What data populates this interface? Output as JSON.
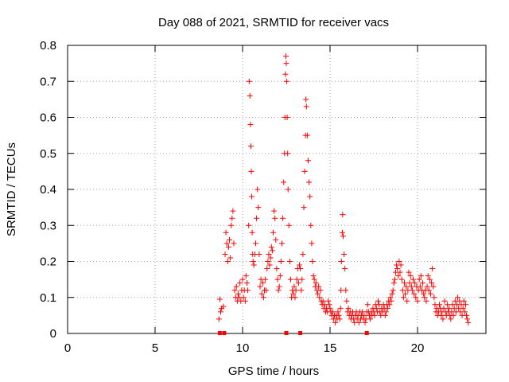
{
  "chart_data": {
    "type": "scatter",
    "title": "Day 088 of 2021, SRMTID for receiver vacs",
    "xlabel": "GPS time / hours",
    "ylabel": "SRMTID / TECUs",
    "xlim": [
      0,
      23.91
    ],
    "ylim": [
      0,
      0.8
    ],
    "x_ticks": [
      0,
      5,
      10,
      15,
      20
    ],
    "y_ticks": [
      0,
      0.1,
      0.2,
      0.3,
      0.4,
      0.5,
      0.6,
      0.7,
      0.8
    ],
    "x_tick_labels": [
      "0",
      "5",
      "10",
      "15",
      "20"
    ],
    "y_tick_labels": [
      "0",
      "0.1",
      "0.2",
      "0.3",
      "0.4",
      "0.5",
      "0.6",
      "0.7",
      "0.8"
    ],
    "grid": true,
    "marker": "+",
    "color": "#ff0000",
    "series": [
      {
        "name": "SRMTID",
        "points": [
          [
            8.65,
            0.04
          ],
          [
            8.7,
            0.095
          ],
          [
            8.75,
            0.06
          ],
          [
            8.8,
            0.07
          ],
          [
            8.9,
            0.075
          ],
          [
            9.0,
            0.22
          ],
          [
            9.05,
            0.28
          ],
          [
            9.1,
            0.25
          ],
          [
            9.15,
            0.2
          ],
          [
            9.2,
            0.24
          ],
          [
            9.25,
            0.26
          ],
          [
            9.3,
            0.21
          ],
          [
            9.35,
            0.3
          ],
          [
            9.4,
            0.32
          ],
          [
            9.45,
            0.34
          ],
          [
            9.5,
            0.25
          ],
          [
            9.55,
            0.12
          ],
          [
            9.6,
            0.1
          ],
          [
            9.65,
            0.13
          ],
          [
            9.7,
            0.09
          ],
          [
            9.75,
            0.11
          ],
          [
            9.8,
            0.1
          ],
          [
            9.85,
            0.14
          ],
          [
            9.9,
            0.09
          ],
          [
            9.95,
            0.12
          ],
          [
            10.0,
            0.15
          ],
          [
            10.05,
            0.1
          ],
          [
            10.1,
            0.12
          ],
          [
            10.15,
            0.09
          ],
          [
            10.2,
            0.16
          ],
          [
            10.25,
            0.14
          ],
          [
            10.3,
            0.12
          ],
          [
            10.35,
            0.3
          ],
          [
            10.38,
            0.7
          ],
          [
            10.42,
            0.66
          ],
          [
            10.45,
            0.58
          ],
          [
            10.48,
            0.52
          ],
          [
            10.5,
            0.45
          ],
          [
            10.52,
            0.38
          ],
          [
            10.55,
            0.28
          ],
          [
            10.58,
            0.22
          ],
          [
            10.6,
            0.2
          ],
          [
            10.65,
            0.19
          ],
          [
            10.7,
            0.22
          ],
          [
            10.75,
            0.25
          ],
          [
            10.8,
            0.32
          ],
          [
            10.85,
            0.4
          ],
          [
            10.9,
            0.35
          ],
          [
            10.95,
            0.22
          ],
          [
            11.0,
            0.13
          ],
          [
            11.05,
            0.15
          ],
          [
            11.1,
            0.11
          ],
          [
            11.15,
            0.14
          ],
          [
            11.2,
            0.1
          ],
          [
            11.25,
            0.12
          ],
          [
            11.3,
            0.15
          ],
          [
            11.35,
            0.12
          ],
          [
            11.4,
            0.18
          ],
          [
            11.45,
            0.2
          ],
          [
            11.5,
            0.22
          ],
          [
            11.55,
            0.19
          ],
          [
            11.6,
            0.21
          ],
          [
            11.65,
            0.24
          ],
          [
            11.7,
            0.23
          ],
          [
            11.75,
            0.28
          ],
          [
            11.8,
            0.34
          ],
          [
            11.85,
            0.32
          ],
          [
            11.9,
            0.26
          ],
          [
            11.95,
            0.18
          ],
          [
            12.0,
            0.15
          ],
          [
            12.05,
            0.12
          ],
          [
            12.1,
            0.13
          ],
          [
            12.15,
            0.16
          ],
          [
            12.2,
            0.2
          ],
          [
            12.25,
            0.25
          ],
          [
            12.3,
            0.32
          ],
          [
            12.35,
            0.42
          ],
          [
            12.4,
            0.5
          ],
          [
            12.42,
            0.6
          ],
          [
            12.45,
            0.72
          ],
          [
            12.48,
            0.77
          ],
          [
            12.5,
            0.75
          ],
          [
            12.52,
            0.7
          ],
          [
            12.55,
            0.6
          ],
          [
            12.58,
            0.5
          ],
          [
            12.6,
            0.4
          ],
          [
            12.65,
            0.3
          ],
          [
            12.7,
            0.2
          ],
          [
            12.75,
            0.15
          ],
          [
            12.8,
            0.1
          ],
          [
            12.85,
            0.12
          ],
          [
            12.9,
            0.11
          ],
          [
            12.95,
            0.13
          ],
          [
            13.0,
            0.1
          ],
          [
            13.05,
            0.12
          ],
          [
            13.1,
            0.15
          ],
          [
            13.15,
            0.18
          ],
          [
            13.2,
            0.14
          ],
          [
            13.25,
            0.19
          ],
          [
            13.3,
            0.18
          ],
          [
            13.35,
            0.12
          ],
          [
            13.4,
            0.15
          ],
          [
            13.45,
            0.22
          ],
          [
            13.5,
            0.35
          ],
          [
            13.55,
            0.45
          ],
          [
            13.6,
            0.55
          ],
          [
            13.62,
            0.65
          ],
          [
            13.65,
            0.63
          ],
          [
            13.7,
            0.55
          ],
          [
            13.75,
            0.48
          ],
          [
            13.8,
            0.42
          ],
          [
            13.85,
            0.38
          ],
          [
            13.9,
            0.3
          ],
          [
            13.95,
            0.25
          ],
          [
            14.0,
            0.2
          ],
          [
            14.05,
            0.16
          ],
          [
            14.1,
            0.15
          ],
          [
            14.15,
            0.13
          ],
          [
            14.2,
            0.14
          ],
          [
            14.25,
            0.12
          ],
          [
            14.3,
            0.11
          ],
          [
            14.35,
            0.13
          ],
          [
            14.4,
            0.1
          ],
          [
            14.45,
            0.12
          ],
          [
            14.5,
            0.09
          ],
          [
            14.55,
            0.08
          ],
          [
            14.6,
            0.09
          ],
          [
            14.65,
            0.07
          ],
          [
            14.7,
            0.08
          ],
          [
            14.75,
            0.06
          ],
          [
            14.8,
            0.07
          ],
          [
            14.85,
            0.06
          ],
          [
            14.9,
            0.09
          ],
          [
            14.95,
            0.08
          ],
          [
            15.0,
            0.07
          ],
          [
            15.05,
            0.06
          ],
          [
            15.1,
            0.05
          ],
          [
            15.15,
            0.06
          ],
          [
            15.2,
            0.04
          ],
          [
            15.25,
            0.05
          ],
          [
            15.3,
            0.03
          ],
          [
            15.35,
            0.05
          ],
          [
            15.4,
            0.04
          ],
          [
            15.45,
            0.06
          ],
          [
            15.5,
            0.05
          ],
          [
            15.55,
            0.04
          ],
          [
            15.6,
            0.07
          ],
          [
            15.62,
            0.12
          ],
          [
            15.65,
            0.2
          ],
          [
            15.7,
            0.28
          ],
          [
            15.72,
            0.33
          ],
          [
            15.75,
            0.27
          ],
          [
            15.8,
            0.22
          ],
          [
            15.85,
            0.18
          ],
          [
            15.9,
            0.12
          ],
          [
            15.95,
            0.09
          ],
          [
            16.0,
            0.06
          ],
          [
            16.05,
            0.07
          ],
          [
            16.1,
            0.05
          ],
          [
            16.15,
            0.06
          ],
          [
            16.2,
            0.04
          ],
          [
            16.25,
            0.05
          ],
          [
            16.3,
            0.06
          ],
          [
            16.35,
            0.04
          ],
          [
            16.4,
            0.03
          ],
          [
            16.45,
            0.05
          ],
          [
            16.5,
            0.06
          ],
          [
            16.55,
            0.04
          ],
          [
            16.6,
            0.05
          ],
          [
            16.65,
            0.03
          ],
          [
            16.7,
            0.06
          ],
          [
            16.75,
            0.04
          ],
          [
            16.8,
            0.05
          ],
          [
            16.85,
            0.06
          ],
          [
            16.9,
            0.04
          ],
          [
            16.95,
            0.05
          ],
          [
            17.0,
            0.03
          ],
          [
            17.05,
            0.04
          ],
          [
            17.1,
            0.06
          ],
          [
            17.15,
            0.08
          ],
          [
            17.2,
            0.06
          ],
          [
            17.25,
            0.05
          ],
          [
            17.3,
            0.04
          ],
          [
            17.35,
            0.06
          ],
          [
            17.4,
            0.05
          ],
          [
            17.45,
            0.07
          ],
          [
            17.5,
            0.06
          ],
          [
            17.55,
            0.05
          ],
          [
            17.6,
            0.08
          ],
          [
            17.65,
            0.07
          ],
          [
            17.7,
            0.06
          ],
          [
            17.75,
            0.09
          ],
          [
            17.8,
            0.08
          ],
          [
            17.85,
            0.06
          ],
          [
            17.9,
            0.05
          ],
          [
            17.95,
            0.07
          ],
          [
            18.0,
            0.06
          ],
          [
            18.05,
            0.08
          ],
          [
            18.1,
            0.07
          ],
          [
            18.15,
            0.05
          ],
          [
            18.2,
            0.06
          ],
          [
            18.25,
            0.08
          ],
          [
            18.3,
            0.07
          ],
          [
            18.35,
            0.09
          ],
          [
            18.4,
            0.08
          ],
          [
            18.45,
            0.1
          ],
          [
            18.5,
            0.09
          ],
          [
            18.55,
            0.11
          ],
          [
            18.6,
            0.12
          ],
          [
            18.65,
            0.14
          ],
          [
            18.7,
            0.15
          ],
          [
            18.75,
            0.17
          ],
          [
            18.8,
            0.19
          ],
          [
            18.85,
            0.18
          ],
          [
            18.9,
            0.16
          ],
          [
            18.95,
            0.2
          ],
          [
            19.0,
            0.17
          ],
          [
            19.05,
            0.19
          ],
          [
            19.1,
            0.15
          ],
          [
            19.15,
            0.12
          ],
          [
            19.2,
            0.1
          ],
          [
            19.25,
            0.14
          ],
          [
            19.3,
            0.11
          ],
          [
            19.35,
            0.13
          ],
          [
            19.4,
            0.09
          ],
          [
            19.45,
            0.12
          ],
          [
            19.5,
            0.17
          ],
          [
            19.55,
            0.14
          ],
          [
            19.6,
            0.16
          ],
          [
            19.65,
            0.13
          ],
          [
            19.7,
            0.12
          ],
          [
            19.75,
            0.15
          ],
          [
            19.8,
            0.11
          ],
          [
            19.85,
            0.14
          ],
          [
            19.9,
            0.1
          ],
          [
            19.95,
            0.13
          ],
          [
            20.0,
            0.09
          ],
          [
            20.05,
            0.12
          ],
          [
            20.1,
            0.15
          ],
          [
            20.15,
            0.13
          ],
          [
            20.2,
            0.16
          ],
          [
            20.25,
            0.12
          ],
          [
            20.3,
            0.14
          ],
          [
            20.35,
            0.11
          ],
          [
            20.4,
            0.1
          ],
          [
            20.45,
            0.12
          ],
          [
            20.5,
            0.09
          ],
          [
            20.55,
            0.13
          ],
          [
            20.6,
            0.16
          ],
          [
            20.65,
            0.12
          ],
          [
            20.7,
            0.15
          ],
          [
            20.75,
            0.11
          ],
          [
            20.8,
            0.14
          ],
          [
            20.85,
            0.18
          ],
          [
            20.9,
            0.13
          ],
          [
            20.95,
            0.1
          ],
          [
            21.0,
            0.08
          ],
          [
            21.05,
            0.06
          ],
          [
            21.1,
            0.07
          ],
          [
            21.15,
            0.05
          ],
          [
            21.2,
            0.06
          ],
          [
            21.25,
            0.08
          ],
          [
            21.3,
            0.07
          ],
          [
            21.35,
            0.05
          ],
          [
            21.4,
            0.06
          ],
          [
            21.45,
            0.04
          ],
          [
            21.5,
            0.07
          ],
          [
            21.55,
            0.09
          ],
          [
            21.6,
            0.06
          ],
          [
            21.65,
            0.05
          ],
          [
            21.7,
            0.08
          ],
          [
            21.75,
            0.06
          ],
          [
            21.8,
            0.07
          ],
          [
            21.85,
            0.05
          ],
          [
            21.9,
            0.04
          ],
          [
            21.95,
            0.06
          ],
          [
            22.0,
            0.08
          ],
          [
            22.05,
            0.05
          ],
          [
            22.1,
            0.07
          ],
          [
            22.15,
            0.09
          ],
          [
            22.2,
            0.06
          ],
          [
            22.25,
            0.08
          ],
          [
            22.3,
            0.1
          ],
          [
            22.35,
            0.07
          ],
          [
            22.4,
            0.09
          ],
          [
            22.45,
            0.06
          ],
          [
            22.5,
            0.08
          ],
          [
            22.55,
            0.05
          ],
          [
            22.6,
            0.07
          ],
          [
            22.65,
            0.09
          ],
          [
            22.7,
            0.06
          ],
          [
            22.75,
            0.08
          ],
          [
            22.8,
            0.05
          ],
          [
            22.85,
            0.04
          ],
          [
            22.9,
            0.03
          ]
        ]
      }
    ],
    "markers_on_x_axis": [
      8.7,
      8.95,
      12.5,
      13.3,
      17.1
    ]
  }
}
